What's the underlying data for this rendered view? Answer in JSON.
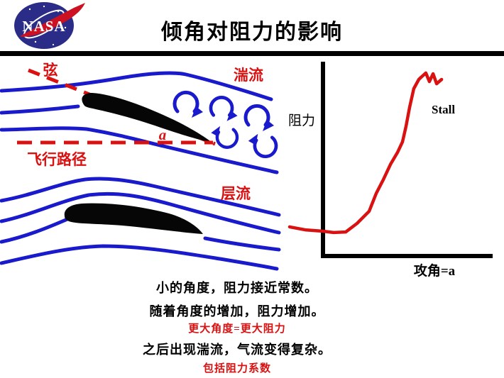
{
  "header": {
    "title": "倾角对阻力的影响",
    "logo_text": "NASA"
  },
  "airflow_diagram": {
    "chord_label": "弦",
    "turbulent_label": "湍流",
    "angle_label": "a",
    "flight_path_label": "飞行路径",
    "laminar_label": "层流"
  },
  "chart": {
    "ylabel": "阻力",
    "xlabel": "攻角=a",
    "stall_label": "Stall"
  },
  "chart_data": {
    "type": "line",
    "title": "",
    "xlabel": "攻角=a",
    "ylabel": "阻力",
    "legend": "none",
    "grid": false,
    "tick_labels": "none (qualitative sketch)",
    "xlim": [
      -1.8,
      9.4
    ],
    "ylim": [
      0,
      10
    ],
    "annotations": [
      {
        "text": "Stall",
        "x": 6.0,
        "y": 7.5
      }
    ],
    "series": [
      {
        "name": "阻力 (drag) vs 攻角 (angle of attack)",
        "x": [
          -1.8,
          -0.96,
          0,
          0.57,
          1.23,
          1.84,
          2.49,
          2.87,
          3.26,
          3.64,
          4.02,
          4.29,
          4.48,
          4.67,
          4.9,
          5.17,
          5.29,
          5.55,
          5.74,
          5.94,
          6.13,
          6.4
        ],
        "values": [
          1.53,
          1.38,
          1.31,
          1.24,
          1.27,
          1.71,
          2.33,
          3.24,
          3.96,
          4.73,
          5.35,
          5.89,
          6.69,
          7.64,
          8.62,
          9.09,
          9.2,
          9.42,
          8.98,
          9.38,
          8.87,
          9.09
        ]
      }
    ]
  },
  "captions": [
    "小的角度，阻力接近常数。",
    "随着角度的增加，阻力增加。",
    "更大角度=更大阻力",
    "之后出现湍流，气流变得复杂。",
    "包括阻力系数"
  ],
  "colors": {
    "flow_blue": "#1a1acd",
    "accent_red": "#d91111",
    "logo_blue": "#2b2c87",
    "ink_black": "#000000"
  }
}
